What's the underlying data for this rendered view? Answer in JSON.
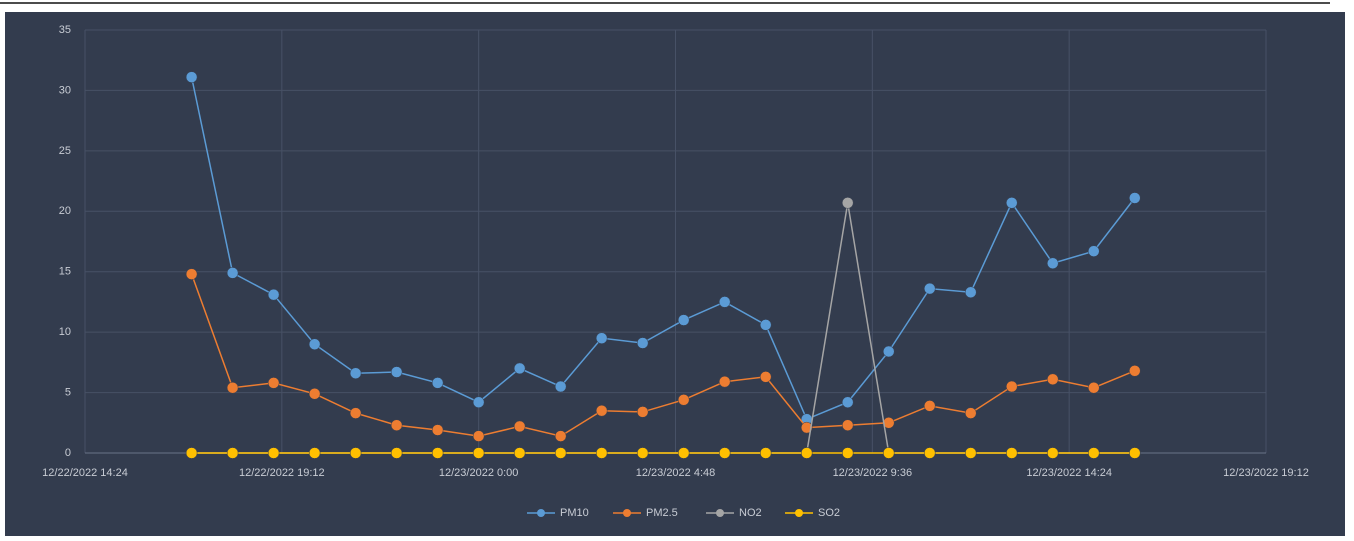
{
  "chart_data": {
    "type": "line",
    "x": [
      "12/22/2022 17:00",
      "12/22/2022 18:00",
      "12/22/2022 19:00",
      "12/22/2022 20:00",
      "12/22/2022 21:00",
      "12/22/2022 22:00",
      "12/22/2022 23:00",
      "12/23/2022 0:00",
      "12/23/2022 1:00",
      "12/23/2022 2:00",
      "12/23/2022 3:00",
      "12/23/2022 4:00",
      "12/23/2022 5:00",
      "12/23/2022 6:00",
      "12/23/2022 7:00",
      "12/23/2022 8:00",
      "12/23/2022 9:00",
      "12/23/2022 10:00",
      "12/23/2022 11:00",
      "12/23/2022 12:00",
      "12/23/2022 13:00",
      "12/23/2022 14:00",
      "12/23/2022 15:00",
      "12/23/2022 16:00"
    ],
    "series": [
      {
        "name": "PM10",
        "color": "#5b9bd5",
        "values": [
          31.1,
          14.9,
          13.1,
          9.0,
          6.6,
          6.7,
          5.8,
          4.2,
          7.0,
          5.5,
          9.5,
          9.1,
          11.0,
          12.5,
          10.6,
          2.8,
          4.2,
          8.4,
          13.6,
          13.3,
          20.7,
          15.7,
          16.7,
          21.1
        ]
      },
      {
        "name": "PM2.5",
        "color": "#ed7d31",
        "values": [
          14.8,
          5.4,
          5.8,
          4.9,
          3.3,
          2.3,
          1.9,
          1.4,
          2.2,
          1.4,
          3.5,
          3.4,
          4.4,
          5.9,
          6.3,
          2.1,
          2.3,
          2.5,
          3.9,
          3.3,
          5.5,
          6.1,
          5.4,
          6.8
        ]
      },
      {
        "name": "NO2",
        "color": "#a5a5a5",
        "values": [
          0,
          0,
          0,
          0,
          0,
          0,
          0,
          0,
          0,
          0,
          0,
          0,
          0,
          0,
          0,
          0,
          20.7,
          0,
          0,
          0,
          0,
          0,
          0,
          0
        ]
      },
      {
        "name": "SO2",
        "color": "#ffc000",
        "values": [
          0,
          0,
          0,
          0,
          0,
          0,
          0,
          0,
          0,
          0,
          0,
          0,
          0,
          0,
          0,
          0,
          0,
          0,
          0,
          0,
          0,
          0,
          0,
          0
        ]
      }
    ],
    "xlim": [
      "12/22/2022 14:24",
      "12/23/2022 19:12"
    ],
    "xticks": [
      "12/22/2022 14:24",
      "12/22/2022 19:12",
      "12/23/2022 0:00",
      "12/23/2022 4:48",
      "12/23/2022 9:36",
      "12/23/2022 14:24",
      "12/23/2022 19:12"
    ],
    "ylim": [
      0,
      35
    ],
    "yticks": [
      0,
      5,
      10,
      15,
      20,
      25,
      30,
      35
    ],
    "grid": true,
    "legend": "bottom"
  }
}
